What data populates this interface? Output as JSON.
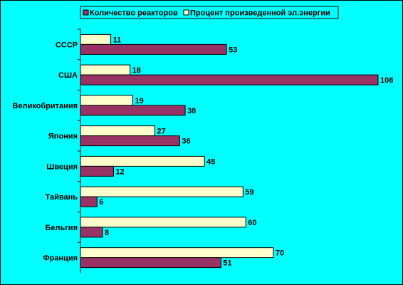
{
  "chart_data": {
    "type": "bar",
    "orientation": "horizontal",
    "categories": [
      "СССР",
      "США",
      "Великобритания",
      "Япония",
      "Швеция",
      "Тайвань",
      "Бельгия",
      "Франция"
    ],
    "series": [
      {
        "name": "Количество реакторов",
        "color": "#993366",
        "values": [
          53,
          108,
          38,
          36,
          12,
          6,
          8,
          51
        ]
      },
      {
        "name": "Процент произведенной эл.энергии",
        "color": "#ffffcc",
        "values": [
          11,
          18,
          19,
          27,
          45,
          59,
          60,
          70
        ]
      }
    ],
    "xlim": [
      0,
      108
    ],
    "grid": false,
    "legend": "top",
    "data_labels": true,
    "background": "#00ffff"
  }
}
